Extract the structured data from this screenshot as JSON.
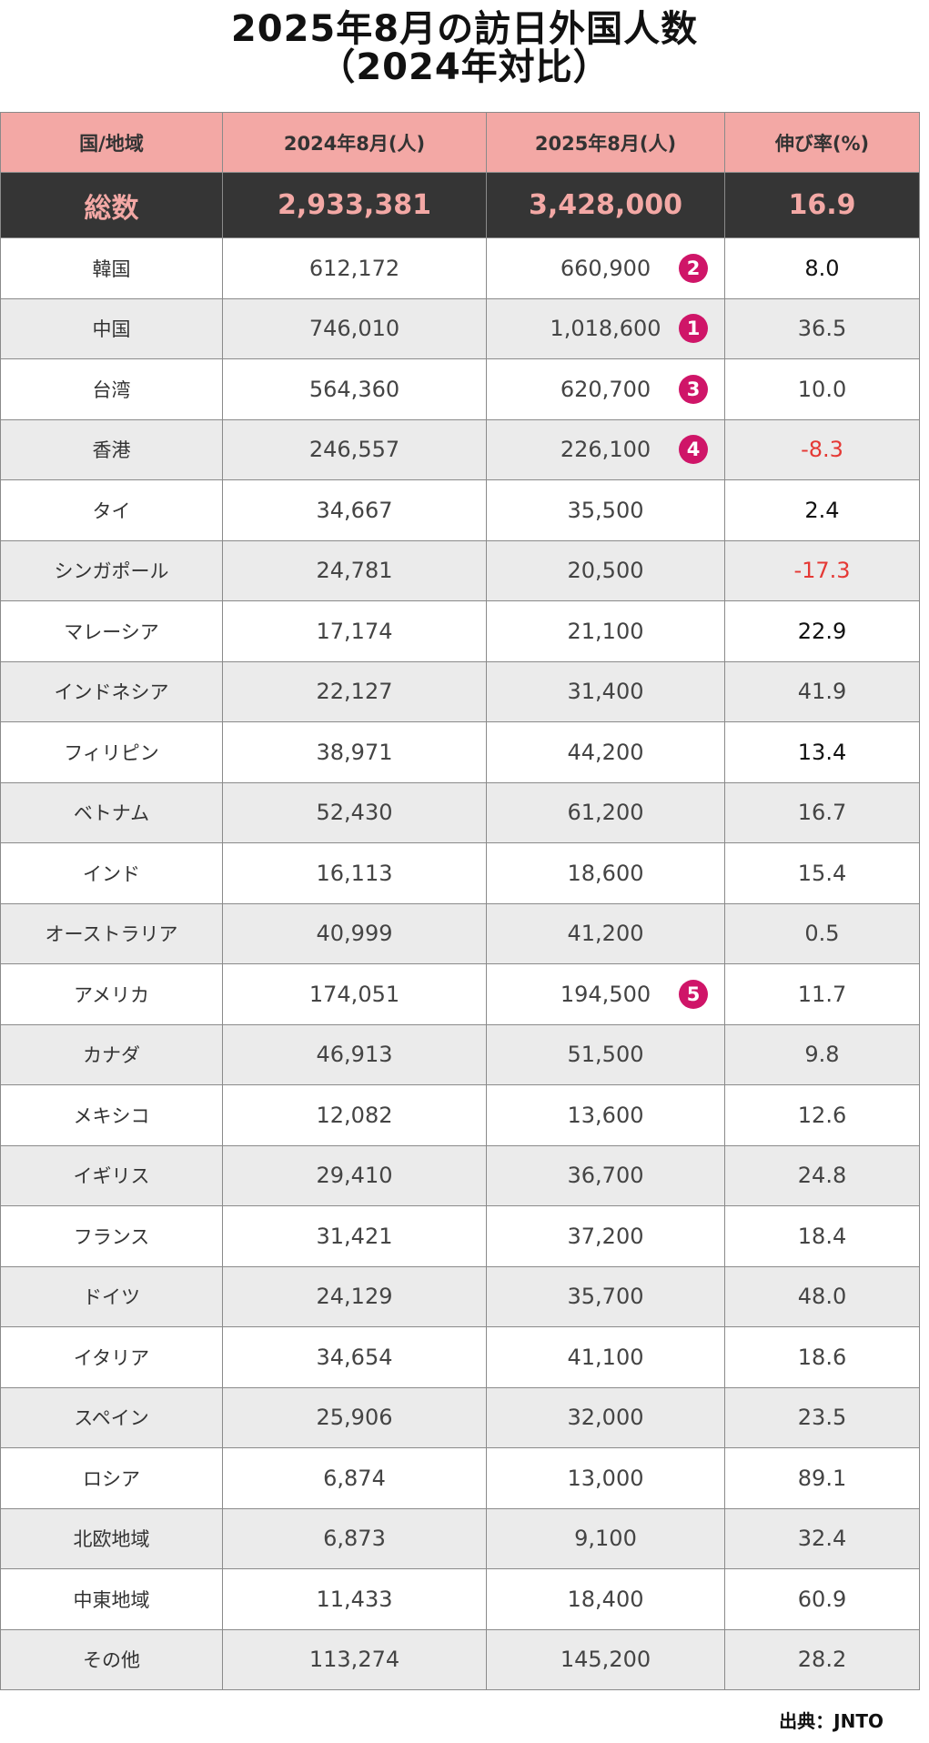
{
  "title": {
    "line1": "2025年8月の訪日外国人数",
    "line2": "（2024年対比）"
  },
  "table": {
    "headers": [
      "国/地域",
      "2024年8月(人)",
      "2025年8月(人)",
      "伸び率(%)"
    ],
    "total": {
      "name": "総数",
      "v2024": "2,933,381",
      "v2025": "3,428,000",
      "rate": "16.9"
    },
    "rows": [
      {
        "name": "韓国",
        "v2024": "612,172",
        "v2025": "660,900",
        "rank": "2",
        "rate": "8.0",
        "rate_color": "black"
      },
      {
        "name": "中国",
        "v2024": "746,010",
        "v2025": "1,018,600",
        "rank": "1",
        "rate": "36.5",
        "rate_color": "gray"
      },
      {
        "name": "台湾",
        "v2024": "564,360",
        "v2025": "620,700",
        "rank": "3",
        "rate": "10.0",
        "rate_color": "gray"
      },
      {
        "name": "香港",
        "v2024": "246,557",
        "v2025": "226,100",
        "rank": "4",
        "rate": "-8.3",
        "rate_color": "red"
      },
      {
        "name": "タイ",
        "v2024": "34,667",
        "v2025": "35,500",
        "rank": "",
        "rate": "2.4",
        "rate_color": "black"
      },
      {
        "name": "シンガポール",
        "v2024": "24,781",
        "v2025": "20,500",
        "rank": "",
        "rate": "-17.3",
        "rate_color": "red"
      },
      {
        "name": "マレーシア",
        "v2024": "17,174",
        "v2025": "21,100",
        "rank": "",
        "rate": "22.9",
        "rate_color": "black"
      },
      {
        "name": "インドネシア",
        "v2024": "22,127",
        "v2025": "31,400",
        "rank": "",
        "rate": "41.9",
        "rate_color": "gray"
      },
      {
        "name": "フィリピン",
        "v2024": "38,971",
        "v2025": "44,200",
        "rank": "",
        "rate": "13.4",
        "rate_color": "black"
      },
      {
        "name": "ベトナム",
        "v2024": "52,430",
        "v2025": "61,200",
        "rank": "",
        "rate": "16.7",
        "rate_color": "gray"
      },
      {
        "name": "インド",
        "v2024": "16,113",
        "v2025": "18,600",
        "rank": "",
        "rate": "15.4",
        "rate_color": "gray"
      },
      {
        "name": "オーストラリア",
        "v2024": "40,999",
        "v2025": "41,200",
        "rank": "",
        "rate": "0.5",
        "rate_color": "gray"
      },
      {
        "name": "アメリカ",
        "v2024": "174,051",
        "v2025": "194,500",
        "rank": "5",
        "rate": "11.7",
        "rate_color": "gray"
      },
      {
        "name": "カナダ",
        "v2024": "46,913",
        "v2025": "51,500",
        "rank": "",
        "rate": "9.8",
        "rate_color": "gray"
      },
      {
        "name": "メキシコ",
        "v2024": "12,082",
        "v2025": "13,600",
        "rank": "",
        "rate": "12.6",
        "rate_color": "gray"
      },
      {
        "name": "イギリス",
        "v2024": "29,410",
        "v2025": "36,700",
        "rank": "",
        "rate": "24.8",
        "rate_color": "gray"
      },
      {
        "name": "フランス",
        "v2024": "31,421",
        "v2025": "37,200",
        "rank": "",
        "rate": "18.4",
        "rate_color": "gray"
      },
      {
        "name": "ドイツ",
        "v2024": "24,129",
        "v2025": "35,700",
        "rank": "",
        "rate": "48.0",
        "rate_color": "gray"
      },
      {
        "name": "イタリア",
        "v2024": "34,654",
        "v2025": "41,100",
        "rank": "",
        "rate": "18.6",
        "rate_color": "gray"
      },
      {
        "name": "スペイン",
        "v2024": "25,906",
        "v2025": "32,000",
        "rank": "",
        "rate": "23.5",
        "rate_color": "gray"
      },
      {
        "name": "ロシア",
        "v2024": "6,874",
        "v2025": "13,000",
        "rank": "",
        "rate": "89.1",
        "rate_color": "gray"
      },
      {
        "name": "北欧地域",
        "v2024": "6,873",
        "v2025": "9,100",
        "rank": "",
        "rate": "32.4",
        "rate_color": "gray"
      },
      {
        "name": "中東地域",
        "v2024": "11,433",
        "v2025": "18,400",
        "rank": "",
        "rate": "60.9",
        "rate_color": "gray"
      },
      {
        "name": "その他",
        "v2024": "113,274",
        "v2025": "145,200",
        "rank": "",
        "rate": "28.2",
        "rate_color": "gray"
      }
    ]
  },
  "source": "出典：JNTO",
  "colors": {
    "header_bg": "#f3a8a5",
    "total_bg": "#353535",
    "total_text": "#f3a8a5",
    "rank_badge": "#cf1568",
    "negative": "#e53935",
    "stripe": "#ebebeb"
  }
}
